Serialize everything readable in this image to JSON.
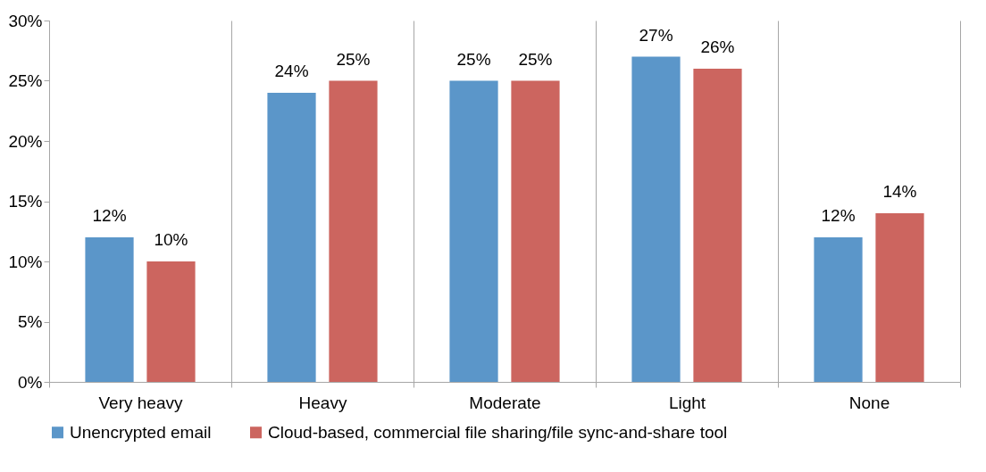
{
  "chart_data": {
    "type": "bar",
    "categories": [
      "Very heavy",
      "Heavy",
      "Moderate",
      "Light",
      "None"
    ],
    "series": [
      {
        "name": "Unencrypted email",
        "color": "#5b96c9",
        "values": [
          12,
          24,
          25,
          27,
          12
        ],
        "value_labels": [
          "12%",
          "24%",
          "25%",
          "27%",
          "12%"
        ]
      },
      {
        "name": "Cloud-based, commercial file sharing/file sync-and-share tool",
        "color": "#cc655f",
        "values": [
          10,
          25,
          25,
          26,
          14
        ],
        "value_labels": [
          "10%",
          "25%",
          "25%",
          "26%",
          "14%"
        ]
      }
    ],
    "ylim": [
      0,
      30
    ],
    "yticks": [
      {
        "value": 0,
        "label": "0%"
      },
      {
        "value": 5,
        "label": "5%"
      },
      {
        "value": 10,
        "label": "10%"
      },
      {
        "value": 15,
        "label": "15%"
      },
      {
        "value": 20,
        "label": "20%"
      },
      {
        "value": 25,
        "label": "25%"
      },
      {
        "value": 30,
        "label": "30%"
      }
    ],
    "grid": "x",
    "legend": "bottom"
  }
}
